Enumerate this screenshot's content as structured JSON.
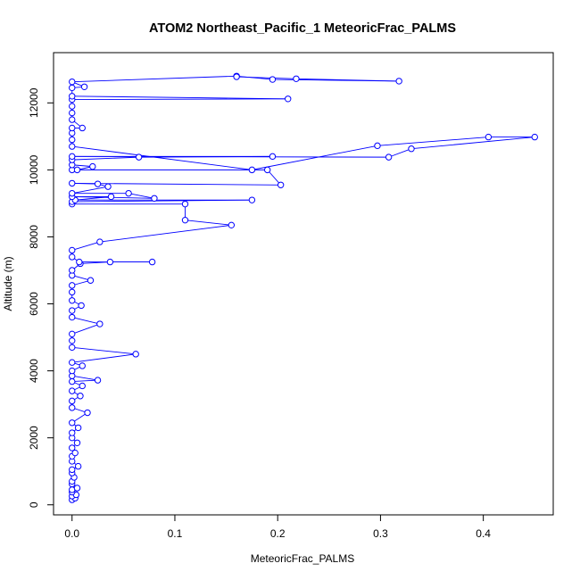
{
  "chart_data": {
    "type": "line",
    "title": "ATOM2 Northeast_Pacific_1 MeteoricFrac_PALMS",
    "xlabel": "MeteoricFrac_PALMS",
    "ylabel": "Altitude (m)",
    "xlim": [
      -0.018,
      0.468
    ],
    "ylim": [
      -300,
      13500
    ],
    "x_ticks": [
      0,
      0.1,
      0.2,
      0.3,
      0.4
    ],
    "x_tick_labels": [
      "0.0",
      "0.1",
      "0.2",
      "0.3",
      "0.4"
    ],
    "y_ticks": [
      0,
      2000,
      4000,
      6000,
      8000,
      10000,
      12000
    ],
    "y_tick_labels": [
      "0",
      "2000",
      "4000",
      "6000",
      "8000",
      "10000",
      "12000"
    ],
    "grid": false,
    "markers": "open-circle",
    "color": "#0000ff",
    "series": [
      {
        "points": [
          [
            0.0,
            150
          ],
          [
            0.003,
            200
          ],
          [
            0.0,
            260
          ],
          [
            0.004,
            300
          ],
          [
            0.0,
            380
          ],
          [
            0.0,
            450
          ],
          [
            0.005,
            500
          ],
          [
            0.0,
            620
          ],
          [
            0.0,
            700
          ],
          [
            0.002,
            820
          ],
          [
            0.0,
            950
          ],
          [
            0.0,
            1050
          ],
          [
            0.006,
            1150
          ],
          [
            0.0,
            1300
          ],
          [
            0.0,
            1450
          ],
          [
            0.003,
            1550
          ],
          [
            0.0,
            1700
          ],
          [
            0.005,
            1850
          ],
          [
            0.0,
            2000
          ],
          [
            0.0,
            2150
          ],
          [
            0.006,
            2300
          ],
          [
            0.0,
            2450
          ],
          [
            0.015,
            2750
          ],
          [
            0.0,
            2900
          ],
          [
            0.0,
            3100
          ],
          [
            0.008,
            3250
          ],
          [
            0.0,
            3400
          ],
          [
            0.01,
            3550
          ],
          [
            0.0,
            3680
          ],
          [
            0.025,
            3720
          ],
          [
            0.0,
            3850
          ],
          [
            0.0,
            4000
          ],
          [
            0.01,
            4150
          ],
          [
            0.0,
            4250
          ],
          [
            0.062,
            4500
          ],
          [
            0.0,
            4700
          ],
          [
            0.0,
            4900
          ],
          [
            0.0,
            5100
          ],
          [
            0.027,
            5400
          ],
          [
            0.0,
            5600
          ],
          [
            0.0,
            5800
          ],
          [
            0.009,
            5950
          ],
          [
            0.0,
            6100
          ],
          [
            0.0,
            6350
          ],
          [
            0.0,
            6550
          ],
          [
            0.018,
            6700
          ],
          [
            0.0,
            6850
          ],
          [
            0.0,
            7000
          ],
          [
            0.008,
            7200
          ],
          [
            0.037,
            7250
          ],
          [
            0.078,
            7250
          ],
          [
            0.007,
            7250
          ],
          [
            0.0,
            7400
          ],
          [
            0.0,
            7600
          ],
          [
            0.027,
            7850
          ],
          [
            0.155,
            8350
          ],
          [
            0.11,
            8500
          ],
          [
            0.11,
            8980
          ],
          [
            0.0,
            8980
          ],
          [
            0.0,
            9050
          ],
          [
            0.175,
            9100
          ],
          [
            0.003,
            9100
          ],
          [
            0.038,
            9200
          ],
          [
            0.0,
            9200
          ],
          [
            0.08,
            9150
          ],
          [
            0.055,
            9300
          ],
          [
            0.0,
            9300
          ],
          [
            0.035,
            9500
          ],
          [
            0.025,
            9580
          ],
          [
            0.0,
            9600
          ],
          [
            0.203,
            9550
          ],
          [
            0.19,
            10000
          ],
          [
            0.0,
            10000
          ],
          [
            0.005,
            10000
          ],
          [
            0.02,
            10100
          ],
          [
            0.0,
            10150
          ],
          [
            0.0,
            10300
          ],
          [
            0.065,
            10380
          ],
          [
            0.195,
            10400
          ],
          [
            0.0,
            10400
          ],
          [
            0.308,
            10380
          ],
          [
            0.33,
            10630
          ],
          [
            0.45,
            10980
          ],
          [
            0.405,
            10980
          ],
          [
            0.297,
            10720
          ],
          [
            0.175,
            10000
          ],
          [
            0.0,
            10700
          ],
          [
            0.0,
            10900
          ],
          [
            0.0,
            11100
          ],
          [
            0.0,
            11250
          ],
          [
            0.01,
            11250
          ],
          [
            0.0,
            11500
          ],
          [
            0.0,
            11700
          ],
          [
            0.0,
            11900
          ],
          [
            0.0,
            12100
          ],
          [
            0.21,
            12120
          ],
          [
            0.0,
            12200
          ],
          [
            0.0,
            12450
          ],
          [
            0.012,
            12480
          ],
          [
            0.0,
            12630
          ],
          [
            0.16,
            12800
          ],
          [
            0.195,
            12700
          ],
          [
            0.318,
            12650
          ],
          [
            0.218,
            12720
          ],
          [
            0.16,
            12780
          ]
        ]
      }
    ]
  }
}
